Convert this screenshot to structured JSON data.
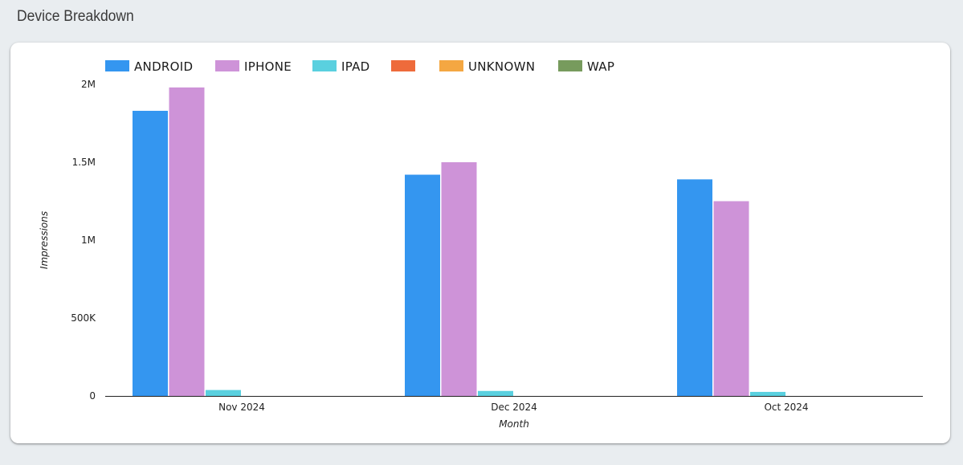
{
  "page": {
    "title": "Device Breakdown"
  },
  "chart_data": {
    "type": "bar",
    "title": "",
    "xlabel": "Month",
    "ylabel": "Impressions",
    "categories": [
      "Nov 2024",
      "Dec 2024",
      "Oct 2024"
    ],
    "ylim": [
      0,
      2000000
    ],
    "yticks": [
      {
        "value": 0,
        "label": "0"
      },
      {
        "value": 500000,
        "label": "500K"
      },
      {
        "value": 1000000,
        "label": "1M"
      },
      {
        "value": 1500000,
        "label": "1.5M"
      },
      {
        "value": 2000000,
        "label": "2M"
      }
    ],
    "legend_position": "top-left",
    "grid": false,
    "series": [
      {
        "name": "ANDROID",
        "color": "#3496f0",
        "values": [
          1830000,
          1420000,
          1390000
        ]
      },
      {
        "name": "IPHONE",
        "color": "#ce93d8",
        "values": [
          1980000,
          1500000,
          1250000
        ]
      },
      {
        "name": "IPAD",
        "color": "#5ad0df",
        "values": [
          38000,
          32000,
          26000
        ]
      },
      {
        "name": "",
        "color": "#ee6b3b",
        "values": [
          0,
          0,
          0
        ]
      },
      {
        "name": "UNKNOWN",
        "color": "#f4a742",
        "values": [
          0,
          0,
          0
        ]
      },
      {
        "name": "WAP",
        "color": "#779b5d",
        "values": [
          0,
          0,
          0
        ]
      }
    ]
  }
}
